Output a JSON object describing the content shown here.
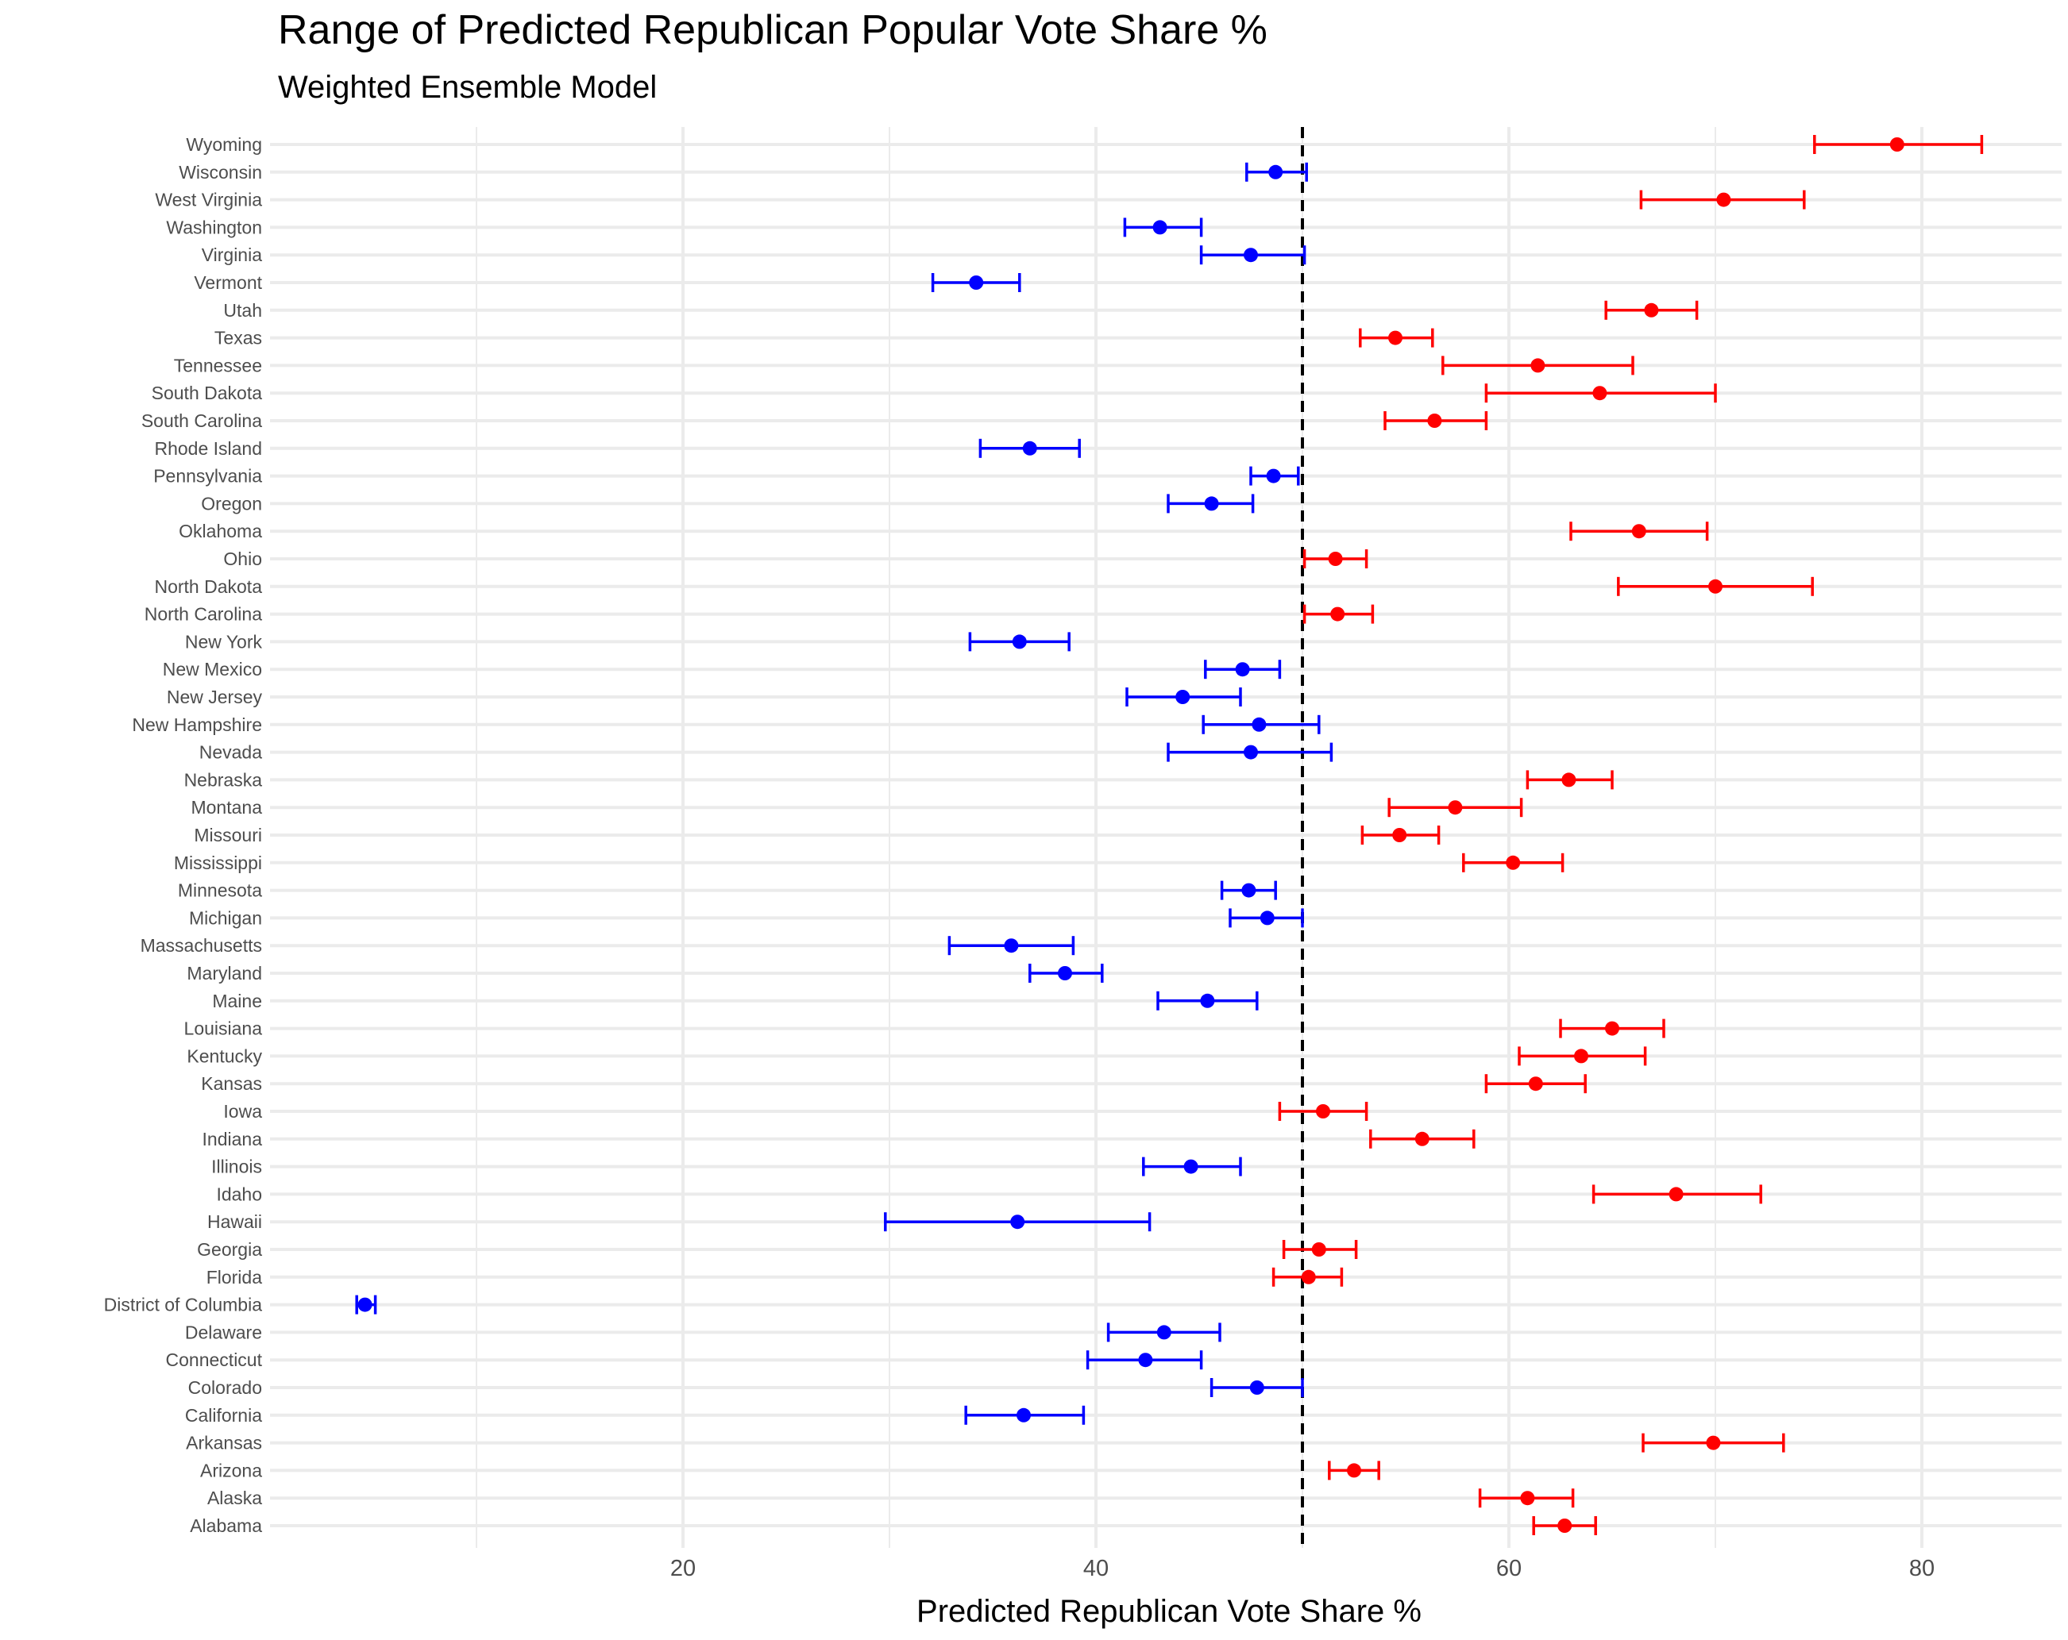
{
  "chart_data": {
    "type": "errorbar",
    "title": "Range of Predicted Republican Popular Vote Share %",
    "subtitle": "Weighted Ensemble Model",
    "xlabel": "Predicted Republican Vote Share %",
    "ylabel": "",
    "xlim": [
      0,
      86.5
    ],
    "xticks": [
      20,
      40,
      60,
      80
    ],
    "reference_line": 50,
    "grid": true,
    "colors": {
      "rep": "#ff0000",
      "dem": "#0000ff",
      "grid": "#ebebeb",
      "reference": "#000000"
    },
    "states": [
      {
        "name": "Wyoming",
        "value": 78.8,
        "low": 74.8,
        "high": 82.9,
        "party": "rep"
      },
      {
        "name": "Wisconsin",
        "value": 48.7,
        "low": 47.3,
        "high": 50.2,
        "party": "dem"
      },
      {
        "name": "West Virginia",
        "value": 70.4,
        "low": 66.4,
        "high": 74.3,
        "party": "rep"
      },
      {
        "name": "Washington",
        "value": 43.1,
        "low": 41.4,
        "high": 45.1,
        "party": "dem"
      },
      {
        "name": "Virginia",
        "value": 47.5,
        "low": 45.1,
        "high": 50.1,
        "party": "dem"
      },
      {
        "name": "Vermont",
        "value": 34.2,
        "low": 32.1,
        "high": 36.3,
        "party": "dem"
      },
      {
        "name": "Utah",
        "value": 66.9,
        "low": 64.7,
        "high": 69.1,
        "party": "rep"
      },
      {
        "name": "Texas",
        "value": 54.5,
        "low": 52.8,
        "high": 56.3,
        "party": "rep"
      },
      {
        "name": "Tennessee",
        "value": 61.4,
        "low": 56.8,
        "high": 66.0,
        "party": "rep"
      },
      {
        "name": "South Dakota",
        "value": 64.4,
        "low": 58.9,
        "high": 70.0,
        "party": "rep"
      },
      {
        "name": "South Carolina",
        "value": 56.4,
        "low": 54.0,
        "high": 58.9,
        "party": "rep"
      },
      {
        "name": "Rhode Island",
        "value": 36.8,
        "low": 34.4,
        "high": 39.2,
        "party": "dem"
      },
      {
        "name": "Pennsylvania",
        "value": 48.6,
        "low": 47.5,
        "high": 49.8,
        "party": "dem"
      },
      {
        "name": "Oregon",
        "value": 45.6,
        "low": 43.5,
        "high": 47.6,
        "party": "dem"
      },
      {
        "name": "Oklahoma",
        "value": 66.3,
        "low": 63.0,
        "high": 69.6,
        "party": "rep"
      },
      {
        "name": "Ohio",
        "value": 51.6,
        "low": 50.1,
        "high": 53.1,
        "party": "rep"
      },
      {
        "name": "North Dakota",
        "value": 70.0,
        "low": 65.3,
        "high": 74.7,
        "party": "rep"
      },
      {
        "name": "North Carolina",
        "value": 51.7,
        "low": 50.1,
        "high": 53.4,
        "party": "rep"
      },
      {
        "name": "New York",
        "value": 36.3,
        "low": 33.9,
        "high": 38.7,
        "party": "dem"
      },
      {
        "name": "New Mexico",
        "value": 47.1,
        "low": 45.3,
        "high": 48.9,
        "party": "dem"
      },
      {
        "name": "New Jersey",
        "value": 44.2,
        "low": 41.5,
        "high": 47.0,
        "party": "dem"
      },
      {
        "name": "New Hampshire",
        "value": 47.9,
        "low": 45.2,
        "high": 50.8,
        "party": "dem"
      },
      {
        "name": "Nevada",
        "value": 47.5,
        "low": 43.5,
        "high": 51.4,
        "party": "dem"
      },
      {
        "name": "Nebraska",
        "value": 62.9,
        "low": 60.9,
        "high": 65.0,
        "party": "rep"
      },
      {
        "name": "Montana",
        "value": 57.4,
        "low": 54.2,
        "high": 60.6,
        "party": "rep"
      },
      {
        "name": "Missouri",
        "value": 54.7,
        "low": 52.9,
        "high": 56.6,
        "party": "rep"
      },
      {
        "name": "Mississippi",
        "value": 60.2,
        "low": 57.8,
        "high": 62.6,
        "party": "rep"
      },
      {
        "name": "Minnesota",
        "value": 47.4,
        "low": 46.1,
        "high": 48.7,
        "party": "dem"
      },
      {
        "name": "Michigan",
        "value": 48.3,
        "low": 46.5,
        "high": 50.0,
        "party": "dem"
      },
      {
        "name": "Massachusetts",
        "value": 35.9,
        "low": 32.9,
        "high": 38.9,
        "party": "dem"
      },
      {
        "name": "Maryland",
        "value": 38.5,
        "low": 36.8,
        "high": 40.3,
        "party": "dem"
      },
      {
        "name": "Maine",
        "value": 45.4,
        "low": 43.0,
        "high": 47.8,
        "party": "dem"
      },
      {
        "name": "Louisiana",
        "value": 65.0,
        "low": 62.5,
        "high": 67.5,
        "party": "rep"
      },
      {
        "name": "Kentucky",
        "value": 63.5,
        "low": 60.5,
        "high": 66.6,
        "party": "rep"
      },
      {
        "name": "Kansas",
        "value": 61.3,
        "low": 58.9,
        "high": 63.7,
        "party": "rep"
      },
      {
        "name": "Iowa",
        "value": 51.0,
        "low": 48.9,
        "high": 53.1,
        "party": "rep"
      },
      {
        "name": "Indiana",
        "value": 55.8,
        "low": 53.3,
        "high": 58.3,
        "party": "rep"
      },
      {
        "name": "Illinois",
        "value": 44.6,
        "low": 42.3,
        "high": 47.0,
        "party": "dem"
      },
      {
        "name": "Idaho",
        "value": 68.1,
        "low": 64.1,
        "high": 72.2,
        "party": "rep"
      },
      {
        "name": "Hawaii",
        "value": 36.2,
        "low": 29.8,
        "high": 42.6,
        "party": "dem"
      },
      {
        "name": "Georgia",
        "value": 50.8,
        "low": 49.1,
        "high": 52.6,
        "party": "rep"
      },
      {
        "name": "Florida",
        "value": 50.3,
        "low": 48.6,
        "high": 51.9,
        "party": "rep"
      },
      {
        "name": "District of Columbia",
        "value": 4.6,
        "low": 4.2,
        "high": 5.1,
        "party": "dem"
      },
      {
        "name": "Delaware",
        "value": 43.3,
        "low": 40.6,
        "high": 46.0,
        "party": "dem"
      },
      {
        "name": "Connecticut",
        "value": 42.4,
        "low": 39.6,
        "high": 45.1,
        "party": "dem"
      },
      {
        "name": "Colorado",
        "value": 47.8,
        "low": 45.6,
        "high": 50.0,
        "party": "dem"
      },
      {
        "name": "California",
        "value": 36.5,
        "low": 33.7,
        "high": 39.4,
        "party": "dem"
      },
      {
        "name": "Arkansas",
        "value": 69.9,
        "low": 66.5,
        "high": 73.3,
        "party": "rep"
      },
      {
        "name": "Arizona",
        "value": 52.5,
        "low": 51.3,
        "high": 53.7,
        "party": "rep"
      },
      {
        "name": "Alaska",
        "value": 60.9,
        "low": 58.6,
        "high": 63.1,
        "party": "rep"
      },
      {
        "name": "Alabama",
        "value": 62.7,
        "low": 61.2,
        "high": 64.2,
        "party": "rep"
      }
    ]
  }
}
